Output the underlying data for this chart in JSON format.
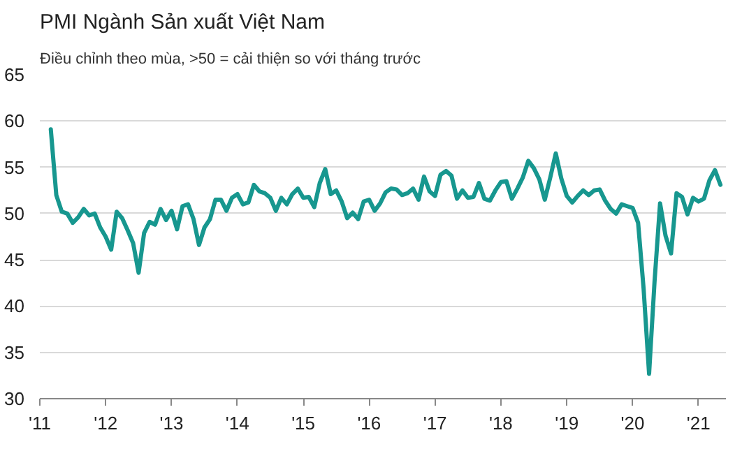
{
  "chart_data": {
    "type": "line",
    "title": "PMI Ngành Sản xuất Việt Nam",
    "subtitle": "Điều chỉnh theo mùa, >50 = cải thiện so với tháng trước",
    "x": [
      "2011-03",
      "2011-04",
      "2011-05",
      "2011-06",
      "2011-07",
      "2011-08",
      "2011-09",
      "2011-10",
      "2011-11",
      "2011-12",
      "2012-01",
      "2012-02",
      "2012-03",
      "2012-04",
      "2012-05",
      "2012-06",
      "2012-07",
      "2012-08",
      "2012-09",
      "2012-10",
      "2012-11",
      "2012-12",
      "2013-01",
      "2013-02",
      "2013-03",
      "2013-04",
      "2013-05",
      "2013-06",
      "2013-07",
      "2013-08",
      "2013-09",
      "2013-10",
      "2013-11",
      "2013-12",
      "2014-01",
      "2014-02",
      "2014-03",
      "2014-04",
      "2014-05",
      "2014-06",
      "2014-07",
      "2014-08",
      "2014-09",
      "2014-10",
      "2014-11",
      "2014-12",
      "2015-01",
      "2015-02",
      "2015-03",
      "2015-04",
      "2015-05",
      "2015-06",
      "2015-07",
      "2015-08",
      "2015-09",
      "2015-10",
      "2015-11",
      "2015-12",
      "2016-01",
      "2016-02",
      "2016-03",
      "2016-04",
      "2016-05",
      "2016-06",
      "2016-07",
      "2016-08",
      "2016-09",
      "2016-10",
      "2016-11",
      "2016-12",
      "2017-01",
      "2017-02",
      "2017-03",
      "2017-04",
      "2017-05",
      "2017-06",
      "2017-07",
      "2017-08",
      "2017-09",
      "2017-10",
      "2017-11",
      "2017-12",
      "2018-01",
      "2018-02",
      "2018-03",
      "2018-04",
      "2018-05",
      "2018-06",
      "2018-07",
      "2018-08",
      "2018-09",
      "2018-10",
      "2018-11",
      "2018-12",
      "2019-01",
      "2019-02",
      "2019-03",
      "2019-04",
      "2019-05",
      "2019-06",
      "2019-07",
      "2019-08",
      "2019-09",
      "2019-10",
      "2019-11",
      "2019-12",
      "2020-01",
      "2020-02",
      "2020-03",
      "2020-04",
      "2020-05",
      "2020-06",
      "2020-07",
      "2020-08",
      "2020-09",
      "2020-10",
      "2020-11",
      "2020-12",
      "2021-01",
      "2021-02",
      "2021-03",
      "2021-04",
      "2021-05"
    ],
    "series": [
      {
        "color": "#17978f",
        "values": [
          59.1,
          52.0,
          50.2,
          50.0,
          49.0,
          49.6,
          50.5,
          49.8,
          50.0,
          48.5,
          47.5,
          46.1,
          50.2,
          49.5,
          48.2,
          46.8,
          43.6,
          47.9,
          49.1,
          48.8,
          50.5,
          49.3,
          50.3,
          48.3,
          50.8,
          51.0,
          49.4,
          46.6,
          48.5,
          49.4,
          51.5,
          51.5,
          50.3,
          51.7,
          52.1,
          51.0,
          51.2,
          53.1,
          52.4,
          52.2,
          51.7,
          50.3,
          51.7,
          51.0,
          52.1,
          52.7,
          51.7,
          51.8,
          50.7,
          53.3,
          54.8,
          52.1,
          52.5,
          51.3,
          49.5,
          50.1,
          49.4,
          51.3,
          51.5,
          50.3,
          51.1,
          52.3,
          52.7,
          52.6,
          52.0,
          52.2,
          52.7,
          51.5,
          54.0,
          52.4,
          51.9,
          54.2,
          54.6,
          54.1,
          51.6,
          52.5,
          51.7,
          51.8,
          53.3,
          51.6,
          51.4,
          52.5,
          53.4,
          53.5,
          51.6,
          52.7,
          53.9,
          55.7,
          54.9,
          53.7,
          51.5,
          53.9,
          56.5,
          53.8,
          51.9,
          51.2,
          51.9,
          52.5,
          52.0,
          52.5,
          52.6,
          51.4,
          50.5,
          50.0,
          51.0,
          50.8,
          50.6,
          49.0,
          41.9,
          32.7,
          42.7,
          51.1,
          47.6,
          45.7,
          52.2,
          51.8,
          49.9,
          51.7,
          51.3,
          51.6,
          53.6,
          54.7,
          53.1
        ]
      }
    ],
    "xlim": [
      "2011",
      "2021-06"
    ],
    "xticks": [
      {
        "value": "2011",
        "label": "'11"
      },
      {
        "value": "2012",
        "label": "'12"
      },
      {
        "value": "2013",
        "label": "'13"
      },
      {
        "value": "2014",
        "label": "'14"
      },
      {
        "value": "2015",
        "label": "'15"
      },
      {
        "value": "2016",
        "label": "'16"
      },
      {
        "value": "2017",
        "label": "'17"
      },
      {
        "value": "2018",
        "label": "'18"
      },
      {
        "value": "2019",
        "label": "'19"
      },
      {
        "value": "2020",
        "label": "'20"
      },
      {
        "value": "2021",
        "label": "'21"
      }
    ],
    "ylim": [
      30,
      65
    ],
    "yticks": [
      30,
      35,
      40,
      45,
      50,
      55,
      60,
      65
    ],
    "grid": "y",
    "marker": "none",
    "line_style": "solid"
  }
}
